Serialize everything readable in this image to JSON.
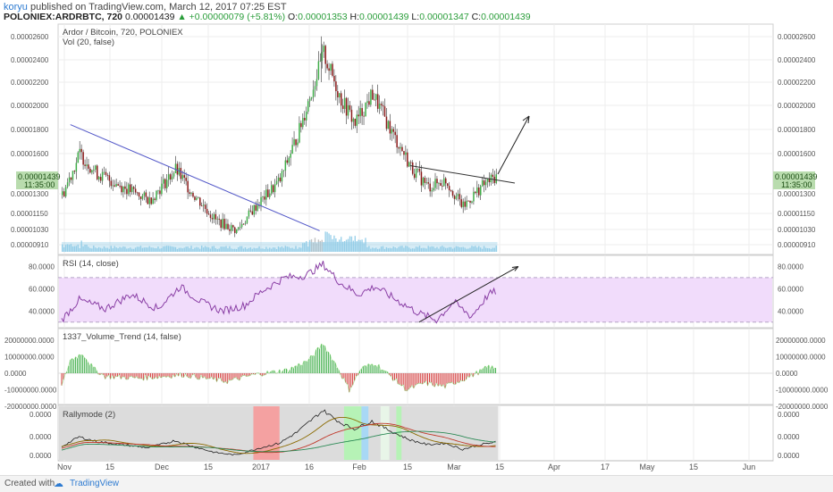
{
  "header": {
    "author": "koryu",
    "published_text": "published on TradingView.com, March 12, 2017 07:25 EST",
    "symbol": "POLONIEX:ARDRBTC, 720",
    "last": "0.00001439",
    "change": "▲ +0.00000079 (+5.81%)",
    "o_label": "O:",
    "o": "0.00001353",
    "h_label": "H:",
    "h": "0.00001439",
    "l_label": "L:",
    "l": "0.00001347",
    "c_label": "C:",
    "c": "0.00001439"
  },
  "footer": {
    "created_with": "Created with",
    "brand": "TradingView",
    "logo_icon": "cloud-icon"
  },
  "colors": {
    "up": "#3fae49",
    "down": "#8b1a1a",
    "volume": "#89c9e6",
    "rsi": "#8a3fa5",
    "rsi_band": "#f1dcfb",
    "trend": "#5358c8",
    "accent": "#2e7bd1"
  },
  "chart_data": [
    {
      "type": "candlestick",
      "legend": "Ardor / Bitcoin, 720, POLONIEX",
      "sub_legend": "Vol (20, false)",
      "y_ticks": [
        "0.00002600",
        "0.00002400",
        "0.00002200",
        "0.00002000",
        "0.00001800",
        "0.00001600",
        "0.00001300",
        "0.00001150",
        "0.00001030",
        "0.00000910"
      ],
      "last_price_label": "0.00001439",
      "countdown_label": "11:35:00",
      "x_labels": [
        "Nov",
        "15",
        "Dec",
        "15",
        "2017",
        "16",
        "Feb",
        "15",
        "Mar",
        "15",
        "Apr",
        "17",
        "May",
        "15",
        "Jun"
      ],
      "anchors": [
        {
          "t": 0,
          "p": 1.29e-05
        },
        {
          "t": 10,
          "p": 1.6e-05
        },
        {
          "t": 20,
          "p": 1.45e-05
        },
        {
          "t": 35,
          "p": 1.35e-05
        },
        {
          "t": 50,
          "p": 1.25e-05
        },
        {
          "t": 65,
          "p": 1.48e-05
        },
        {
          "t": 75,
          "p": 1.3e-05
        },
        {
          "t": 88,
          "p": 1.1e-05
        },
        {
          "t": 100,
          "p": 1.02e-05
        },
        {
          "t": 112,
          "p": 1.22e-05
        },
        {
          "t": 125,
          "p": 1.4e-05
        },
        {
          "t": 135,
          "p": 1.75e-05
        },
        {
          "t": 150,
          "p": 2.45e-05
        },
        {
          "t": 160,
          "p": 2.05e-05
        },
        {
          "t": 168,
          "p": 1.85e-05
        },
        {
          "t": 178,
          "p": 2.1e-05
        },
        {
          "t": 190,
          "p": 1.75e-05
        },
        {
          "t": 200,
          "p": 1.5e-05
        },
        {
          "t": 210,
          "p": 1.35e-05
        },
        {
          "t": 220,
          "p": 1.4e-05
        },
        {
          "t": 230,
          "p": 1.2e-05
        },
        {
          "t": 240,
          "p": 1.35e-05
        },
        {
          "t": 250,
          "p": 1.44e-05
        }
      ],
      "trendlines": [
        {
          "name": "downtrend",
          "t1": 5,
          "p1": 1.84e-05,
          "t2": 148,
          "p2": 1.02e-05
        },
        {
          "name": "neckline",
          "t1": 200,
          "p1": 1.51e-05,
          "t2": 260,
          "p2": 1.38e-05
        }
      ]
    },
    {
      "type": "line",
      "legend": "RSI (14, close)",
      "y_ticks": [
        "80.0000",
        "60.0000",
        "40.0000"
      ],
      "band": [
        30,
        70
      ],
      "anchors": [
        {
          "t": 0,
          "v": 32
        },
        {
          "t": 10,
          "v": 50
        },
        {
          "t": 25,
          "v": 42
        },
        {
          "t": 40,
          "v": 55
        },
        {
          "t": 55,
          "v": 42
        },
        {
          "t": 68,
          "v": 62
        },
        {
          "t": 80,
          "v": 48
        },
        {
          "t": 92,
          "v": 40
        },
        {
          "t": 105,
          "v": 45
        },
        {
          "t": 115,
          "v": 58
        },
        {
          "t": 128,
          "v": 70
        },
        {
          "t": 140,
          "v": 72
        },
        {
          "t": 150,
          "v": 82
        },
        {
          "t": 160,
          "v": 65
        },
        {
          "t": 170,
          "v": 55
        },
        {
          "t": 180,
          "v": 62
        },
        {
          "t": 192,
          "v": 50
        },
        {
          "t": 205,
          "v": 38
        },
        {
          "t": 215,
          "v": 32
        },
        {
          "t": 225,
          "v": 48
        },
        {
          "t": 235,
          "v": 35
        },
        {
          "t": 245,
          "v": 55
        },
        {
          "t": 250,
          "v": 58
        }
      ],
      "trendline": {
        "t1": 205,
        "v1": 30,
        "t2": 262,
        "v2": 80
      }
    },
    {
      "type": "histogram",
      "legend": "1337_Volume_Trend (14, false)",
      "y_ticks": [
        "20000000.0000",
        "10000000.0000",
        "0.0000",
        "-10000000.0000",
        "-20000000.0000"
      ],
      "anchors": [
        {
          "t": 0,
          "v": -8000000
        },
        {
          "t": 5,
          "v": 8000000
        },
        {
          "t": 12,
          "v": 12000000
        },
        {
          "t": 18,
          "v": 3000000
        },
        {
          "t": 25,
          "v": -2000000
        },
        {
          "t": 45,
          "v": -3000000
        },
        {
          "t": 70,
          "v": -1000000
        },
        {
          "t": 95,
          "v": -5000000
        },
        {
          "t": 110,
          "v": -1000000
        },
        {
          "t": 130,
          "v": 2000000
        },
        {
          "t": 142,
          "v": 8000000
        },
        {
          "t": 150,
          "v": 18000000
        },
        {
          "t": 158,
          "v": 4000000
        },
        {
          "t": 165,
          "v": -10000000
        },
        {
          "t": 172,
          "v": 3000000
        },
        {
          "t": 180,
          "v": 6000000
        },
        {
          "t": 190,
          "v": -3000000
        },
        {
          "t": 198,
          "v": -10000000
        },
        {
          "t": 208,
          "v": -6000000
        },
        {
          "t": 220,
          "v": -8000000
        },
        {
          "t": 232,
          "v": -3000000
        },
        {
          "t": 240,
          "v": 1000000
        },
        {
          "t": 245,
          "v": 4000000
        },
        {
          "t": 250,
          "v": 2000000
        }
      ]
    },
    {
      "type": "line",
      "legend": "Rallymode (2)",
      "y_ticks": [
        "0.0000",
        "0.0000",
        "0.0000"
      ]
    }
  ]
}
